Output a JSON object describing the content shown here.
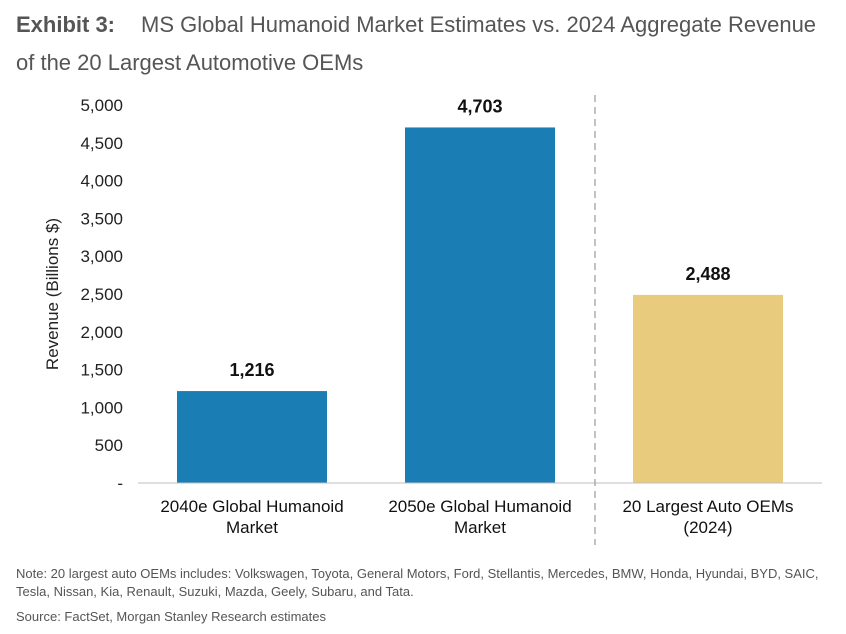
{
  "title": {
    "exhibit": "Exhibit 3:",
    "text": "MS Global Humanoid Market Estimates vs. 2024 Aggregate Revenue of the 20 Largest Automotive OEMs"
  },
  "chart_data": {
    "type": "bar",
    "categories": [
      [
        "2040e Global Humanoid",
        "Market"
      ],
      [
        "2050e Global Humanoid",
        "Market"
      ],
      [
        "20 Largest Auto OEMs",
        "(2024)"
      ]
    ],
    "values": [
      1216,
      4703,
      2488
    ],
    "data_labels": [
      "1,216",
      "4,703",
      "2,488"
    ],
    "bar_colors": [
      "#1a7db4",
      "#1a7db4",
      "#e8cb7d"
    ],
    "ylabel": "Revenue (Billions $)",
    "ylim": [
      0,
      5000
    ],
    "yticks": [
      0,
      500,
      1000,
      1500,
      2000,
      2500,
      3000,
      3500,
      4000,
      4500,
      5000
    ],
    "ytick_labels": [
      "-",
      "500",
      "1,000",
      "1,500",
      "2,000",
      "2,500",
      "3,000",
      "3,500",
      "4,000",
      "4,500",
      "5,000"
    ],
    "divider": "dashed line between 2050e and 20 Largest Auto OEMs",
    "grid": false
  },
  "note": "Note: 20 largest auto OEMs includes: Volkswagen, Toyota, General Motors, Ford, Stellantis, Mercedes, BMW, Honda, Hyundai, BYD, SAIC, Tesla, Nissan, Kia, Renault, Suzuki, Mazda, Geely, Subaru, and Tata.",
  "source": "Source: FactSet, Morgan Stanley Research estimates"
}
